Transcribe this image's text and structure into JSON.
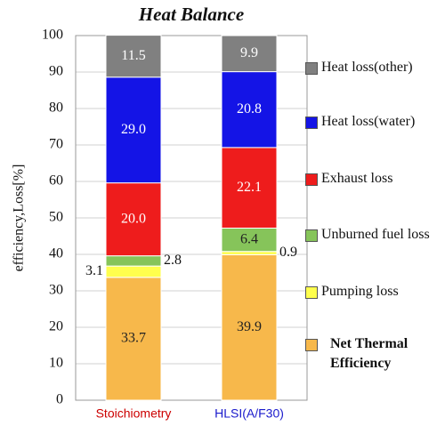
{
  "chart_data": {
    "type": "stacked_bar",
    "title": "Heat Balance",
    "y_label": "efficiency,Loss[%]",
    "categories": [
      "Stoichiometry",
      "HLSI(A/F30)"
    ],
    "category_label_colors": [
      "#cc0000",
      "#1a1acc"
    ],
    "series": [
      {
        "name": "Net Thermal Efficiency",
        "color": "#f7b84b",
        "values": [
          33.7,
          39.9
        ],
        "value_labels": [
          "33.7",
          "39.9"
        ]
      },
      {
        "name": "Pumping loss",
        "color": "#ffff4d",
        "values": [
          3.1,
          0.9
        ],
        "value_labels": [
          "3.1",
          "0.9"
        ]
      },
      {
        "name": "Unburned fuel loss",
        "color": "#86c45a",
        "values": [
          2.8,
          6.4
        ],
        "value_labels": [
          "2.8",
          "6.4"
        ]
      },
      {
        "name": "Exhaust loss",
        "color": "#ee1c1c",
        "values": [
          20.0,
          22.1
        ],
        "value_labels": [
          "20.0",
          "22.1"
        ]
      },
      {
        "name": "Heat loss(water)",
        "color": "#1414e6",
        "values": [
          29.0,
          20.8
        ],
        "value_labels": [
          "29.0",
          "20.8"
        ]
      },
      {
        "name": "Heat loss(other)",
        "color": "#808080",
        "values": [
          11.5,
          9.9
        ],
        "value_labels": [
          "11.5",
          "9.9"
        ]
      }
    ],
    "ylim": [
      0,
      100
    ],
    "yticks": [
      0,
      10,
      20,
      30,
      40,
      50,
      60,
      70,
      80,
      90,
      100
    ],
    "grid": true
  }
}
